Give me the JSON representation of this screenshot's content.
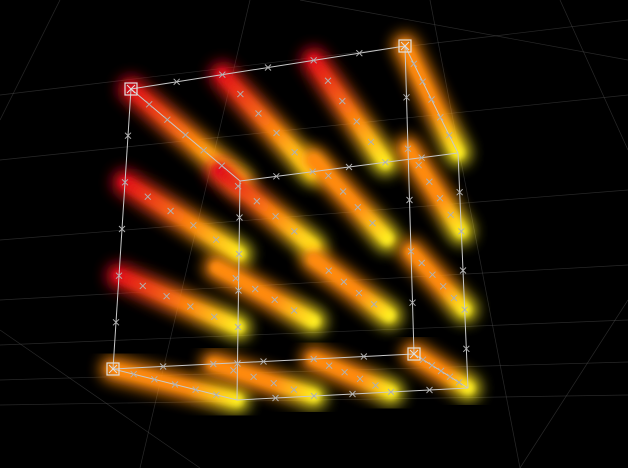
{
  "canvas": {
    "background_color": "#000000",
    "grid_color": "#5a5a5a",
    "wireframe_color": "#c8c8c8",
    "particle_colors": {
      "back": "#e0101a",
      "middle": "#ff8a10",
      "front": "#ffee20"
    },
    "handle_icon": "square-x-handle-icon",
    "point_icon": "x-marker-icon"
  }
}
